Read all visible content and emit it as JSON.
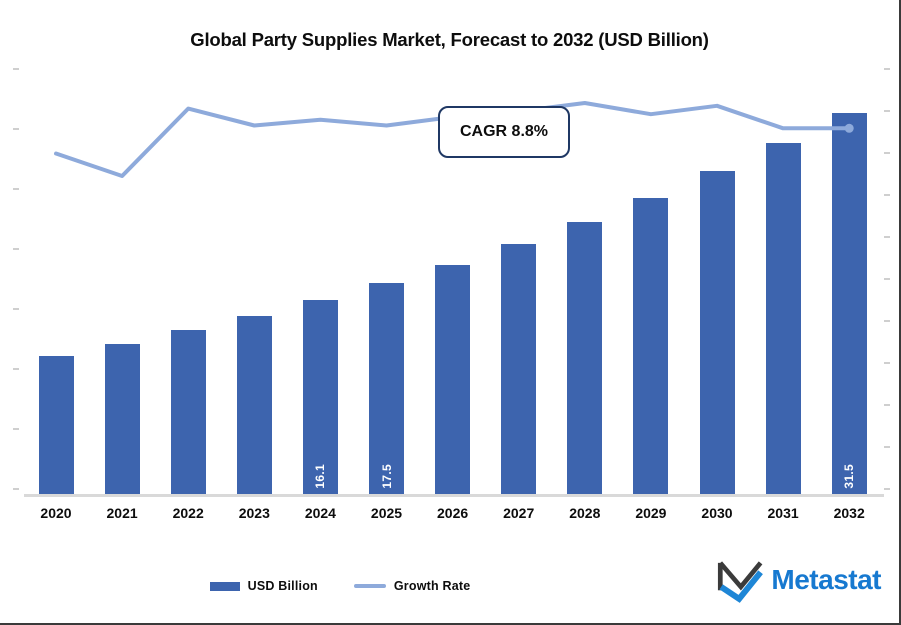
{
  "title": "Global Party Supplies Market, Forecast to 2032 (USD Billion)",
  "annotation": {
    "label": "CAGR 8.8%"
  },
  "legend": [
    {
      "label": "USD Billion",
      "swatch": "bar"
    },
    {
      "label": "Growth Rate",
      "swatch": "line"
    }
  ],
  "logo": {
    "text": "Metastat",
    "icon": "metastat-m-icon"
  },
  "colors": {
    "bar": "#3d64ae",
    "line": "#8eaadb",
    "annotation_border": "#1f3864",
    "axis": "#d9d9d9",
    "logo_dark": "#3b3b3b",
    "logo_blue": "#1e86d6",
    "logo_text": "#1779d0"
  },
  "chart_data": {
    "type": "bar",
    "subtype": "bar-with-line-overlay",
    "title": "Global Party Supplies Market, Forecast to 2032 (USD Billion)",
    "categories": [
      "2020",
      "2021",
      "2022",
      "2023",
      "2024",
      "2025",
      "2026",
      "2027",
      "2028",
      "2029",
      "2030",
      "2031",
      "2032"
    ],
    "series": [
      {
        "name": "USD Billion",
        "type": "bar",
        "values": [
          11.5,
          12.5,
          13.6,
          14.8,
          16.1,
          17.5,
          19.0,
          20.7,
          22.5,
          24.5,
          26.7,
          29.0,
          31.5
        ],
        "bar_labels": [
          "",
          "",
          "",
          "",
          "16.1",
          "17.5",
          "",
          "",
          "",
          "",
          "",
          "",
          "31.5"
        ],
        "labeled_values": {
          "2024": 16.1,
          "2025": 17.5,
          "2032": 31.5
        },
        "values_estimated_except_labeled": true
      },
      {
        "name": "Growth Rate",
        "type": "line",
        "values_pct_estimated": [
          8.4,
          8.0,
          9.2,
          8.9,
          9.0,
          8.9,
          9.05,
          9.15,
          9.3,
          9.1,
          9.25,
          8.85,
          8.85
        ]
      }
    ],
    "annotations": [
      {
        "text": "CAGR 8.8%"
      }
    ],
    "xlabel": "",
    "ylabel": "",
    "value_axis_labels_visible": false,
    "grid": false,
    "legend_position": "bottom"
  }
}
